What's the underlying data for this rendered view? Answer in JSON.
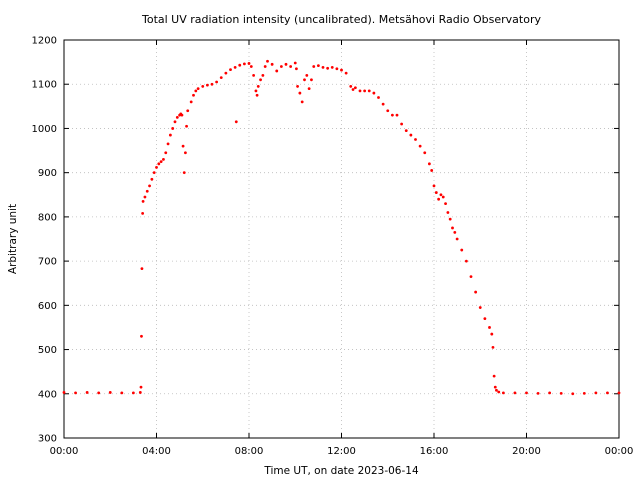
{
  "chart_data": {
    "type": "scatter",
    "title": "Total UV radiation intensity (uncalibrated). Metsähovi Radio Observatory",
    "xlabel": "Time UT, on date 2023-06-14",
    "ylabel": "Arbitrary unit",
    "xlim": [
      0,
      24
    ],
    "ylim": [
      300,
      1200
    ],
    "x_ticks": [
      {
        "value": 0,
        "label": "00:00"
      },
      {
        "value": 4,
        "label": "04:00"
      },
      {
        "value": 8,
        "label": "08:00"
      },
      {
        "value": 12,
        "label": "12:00"
      },
      {
        "value": 16,
        "label": "16:00"
      },
      {
        "value": 20,
        "label": "20:00"
      },
      {
        "value": 24,
        "label": "00:00"
      }
    ],
    "y_ticks": [
      300,
      400,
      500,
      600,
      700,
      800,
      900,
      1000,
      1100,
      1200
    ],
    "grid": true,
    "marker_color": "#ff0000",
    "series": [
      {
        "x_unit": "hours UT",
        "points": [
          [
            0.0,
            403
          ],
          [
            0.5,
            402
          ],
          [
            1.0,
            403
          ],
          [
            1.5,
            402
          ],
          [
            2.0,
            403
          ],
          [
            2.5,
            402
          ],
          [
            3.0,
            402
          ],
          [
            3.3,
            403
          ],
          [
            3.33,
            415
          ],
          [
            3.35,
            530
          ],
          [
            3.37,
            683
          ],
          [
            3.4,
            808
          ],
          [
            3.42,
            835
          ],
          [
            3.5,
            845
          ],
          [
            3.6,
            858
          ],
          [
            3.7,
            870
          ],
          [
            3.8,
            885
          ],
          [
            3.9,
            900
          ],
          [
            4.0,
            912
          ],
          [
            4.1,
            920
          ],
          [
            4.2,
            925
          ],
          [
            4.3,
            930
          ],
          [
            4.4,
            945
          ],
          [
            4.5,
            965
          ],
          [
            4.6,
            985
          ],
          [
            4.7,
            1000
          ],
          [
            4.8,
            1015
          ],
          [
            4.9,
            1025
          ],
          [
            5.0,
            1030
          ],
          [
            5.05,
            1033
          ],
          [
            5.1,
            1030
          ],
          [
            5.15,
            960
          ],
          [
            5.2,
            900
          ],
          [
            5.25,
            945
          ],
          [
            5.3,
            1005
          ],
          [
            5.35,
            1040
          ],
          [
            5.5,
            1060
          ],
          [
            5.6,
            1075
          ],
          [
            5.7,
            1085
          ],
          [
            5.8,
            1090
          ],
          [
            6.0,
            1095
          ],
          [
            6.2,
            1098
          ],
          [
            6.4,
            1100
          ],
          [
            6.6,
            1105
          ],
          [
            6.8,
            1115
          ],
          [
            7.0,
            1125
          ],
          [
            7.2,
            1133
          ],
          [
            7.4,
            1138
          ],
          [
            7.45,
            1015
          ],
          [
            7.6,
            1143
          ],
          [
            7.8,
            1146
          ],
          [
            8.0,
            1147
          ],
          [
            8.1,
            1140
          ],
          [
            8.2,
            1120
          ],
          [
            8.3,
            1085
          ],
          [
            8.35,
            1075
          ],
          [
            8.4,
            1095
          ],
          [
            8.5,
            1110
          ],
          [
            8.6,
            1120
          ],
          [
            8.7,
            1140
          ],
          [
            8.8,
            1152
          ],
          [
            9.0,
            1145
          ],
          [
            9.2,
            1130
          ],
          [
            9.4,
            1140
          ],
          [
            9.6,
            1145
          ],
          [
            9.8,
            1140
          ],
          [
            10.0,
            1148
          ],
          [
            10.05,
            1135
          ],
          [
            10.1,
            1095
          ],
          [
            10.2,
            1080
          ],
          [
            10.3,
            1060
          ],
          [
            10.4,
            1110
          ],
          [
            10.5,
            1120
          ],
          [
            10.6,
            1090
          ],
          [
            10.7,
            1110
          ],
          [
            10.8,
            1140
          ],
          [
            11.0,
            1142
          ],
          [
            11.2,
            1138
          ],
          [
            11.4,
            1136
          ],
          [
            11.6,
            1138
          ],
          [
            11.8,
            1135
          ],
          [
            12.0,
            1132
          ],
          [
            12.2,
            1125
          ],
          [
            12.4,
            1095
          ],
          [
            12.5,
            1088
          ],
          [
            12.6,
            1092
          ],
          [
            12.8,
            1085
          ],
          [
            13.0,
            1085
          ],
          [
            13.2,
            1085
          ],
          [
            13.4,
            1080
          ],
          [
            13.6,
            1070
          ],
          [
            13.8,
            1055
          ],
          [
            14.0,
            1040
          ],
          [
            14.2,
            1030
          ],
          [
            14.4,
            1030
          ],
          [
            14.6,
            1010
          ],
          [
            14.8,
            995
          ],
          [
            15.0,
            985
          ],
          [
            15.2,
            975
          ],
          [
            15.4,
            960
          ],
          [
            15.6,
            945
          ],
          [
            15.8,
            920
          ],
          [
            15.9,
            905
          ],
          [
            16.0,
            870
          ],
          [
            16.1,
            855
          ],
          [
            16.2,
            840
          ],
          [
            16.3,
            850
          ],
          [
            16.4,
            845
          ],
          [
            16.5,
            830
          ],
          [
            16.6,
            810
          ],
          [
            16.7,
            795
          ],
          [
            16.8,
            775
          ],
          [
            16.9,
            765
          ],
          [
            17.0,
            750
          ],
          [
            17.2,
            725
          ],
          [
            17.4,
            700
          ],
          [
            17.6,
            665
          ],
          [
            17.8,
            630
          ],
          [
            18.0,
            595
          ],
          [
            18.2,
            570
          ],
          [
            18.4,
            550
          ],
          [
            18.5,
            535
          ],
          [
            18.55,
            505
          ],
          [
            18.6,
            440
          ],
          [
            18.65,
            415
          ],
          [
            18.7,
            408
          ],
          [
            18.8,
            404
          ],
          [
            19.0,
            402
          ],
          [
            19.5,
            402
          ],
          [
            20.0,
            402
          ],
          [
            20.5,
            401
          ],
          [
            21.0,
            402
          ],
          [
            21.5,
            401
          ],
          [
            22.0,
            400
          ],
          [
            22.5,
            401
          ],
          [
            23.0,
            402
          ],
          [
            23.5,
            402
          ],
          [
            24.0,
            402
          ]
        ]
      }
    ]
  }
}
